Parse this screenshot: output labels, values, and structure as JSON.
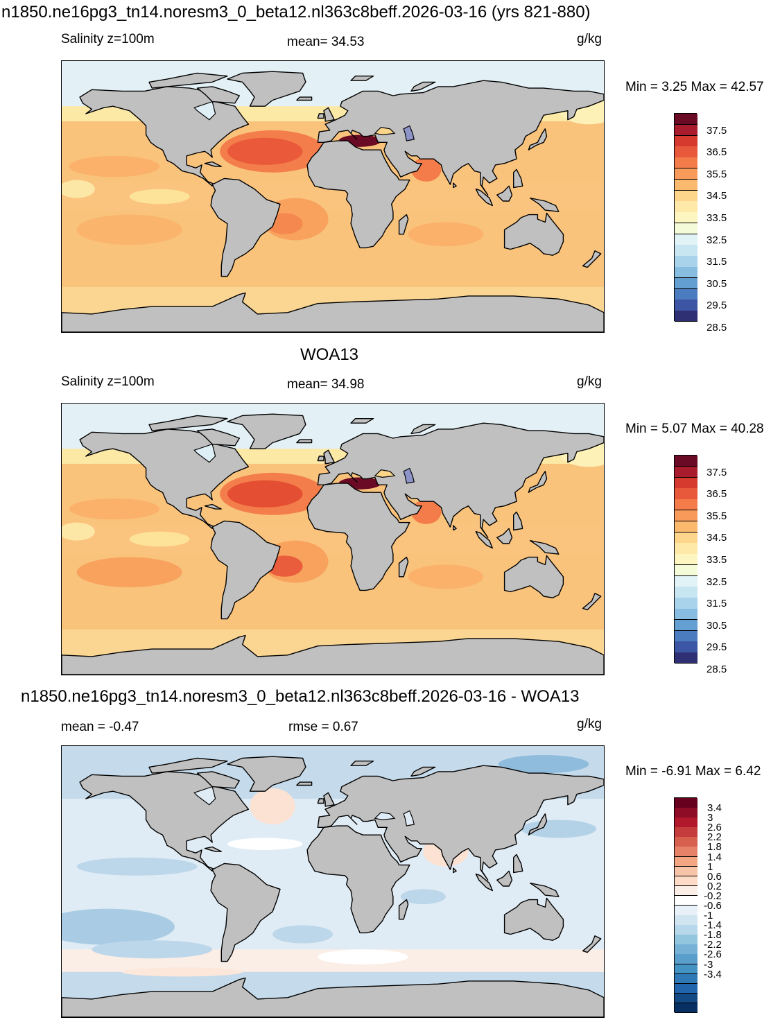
{
  "panels": [
    {
      "top_title": "n1850.ne16pg3_tn14.noresm3_0_beta12.nl363c8beff.2026-03-16 (yrs 821-880)",
      "left_label": "Salinity z=100m",
      "center_label": "mean=  34.53",
      "units": "g/kg",
      "minmax": "Min =   3.25 Max =  42.57",
      "style": "model",
      "colorbar": {
        "colors": [
          "#6b0a24",
          "#a91c2d",
          "#d63a2f",
          "#e8583a",
          "#f47c4a",
          "#f89a5a",
          "#fbb96e",
          "#fdd58b",
          "#fee9a8",
          "#fdf6c0",
          "#f4fbd9",
          "#e1f3f6",
          "#c8e6f2",
          "#a9d3eb",
          "#86bde0",
          "#639fd1",
          "#4a7cbf",
          "#3c55a4",
          "#2f2f74"
        ],
        "ticks": [
          "37.5",
          "36.5",
          "35.5",
          "34.5",
          "33.5",
          "32.5",
          "31.5",
          "30.5",
          "29.5",
          "28.5"
        ]
      }
    },
    {
      "top_title": "WOA13",
      "left_label": "Salinity z=100m",
      "center_label": "mean=  34.98",
      "units": "g/kg",
      "minmax": "Min =   5.07 Max =  40.28",
      "style": "obs",
      "colorbar": {
        "colors": [
          "#6b0a24",
          "#a91c2d",
          "#d63a2f",
          "#e8583a",
          "#f47c4a",
          "#f89a5a",
          "#fbb96e",
          "#fdd58b",
          "#fee9a8",
          "#fdf6c0",
          "#f4fbd9",
          "#e1f3f6",
          "#c8e6f2",
          "#a9d3eb",
          "#86bde0",
          "#639fd1",
          "#4a7cbf",
          "#3c55a4",
          "#2f2f74"
        ],
        "ticks": [
          "37.5",
          "36.5",
          "35.5",
          "34.5",
          "33.5",
          "32.5",
          "31.5",
          "30.5",
          "29.5",
          "28.5"
        ]
      }
    },
    {
      "top_title": "n1850.ne16pg3_tn14.noresm3_0_beta12.nl363c8beff.2026-03-16 - WOA13",
      "left_label": "mean =  -0.47",
      "center_label": "rmse =   0.67",
      "units": "g/kg",
      "minmax": "Min =  -6.91 Max =   6.42",
      "style": "diff",
      "colorbar": {
        "colors": [
          "#67001f",
          "#8e0c25",
          "#b2182b",
          "#c43c3c",
          "#d6604d",
          "#e58268",
          "#f4a582",
          "#f8c4a8",
          "#fddbc7",
          "#fbeee6",
          "#ffffff",
          "#e8f1f7",
          "#d1e5f0",
          "#b7d7ea",
          "#92c5de",
          "#76b2d6",
          "#5a9fcc",
          "#4393c3",
          "#3079b7",
          "#2166ac",
          "#134a85",
          "#053061"
        ],
        "ticks": [
          "3.4",
          "3",
          "2.6",
          "2.2",
          "1.8",
          "1.4",
          "1",
          "0.6",
          "0.2",
          "-0.2",
          "-0.6",
          "-1",
          "-1.4",
          "-1.8",
          "-2.2",
          "-2.6",
          "-3",
          "-3.4"
        ]
      }
    }
  ]
}
